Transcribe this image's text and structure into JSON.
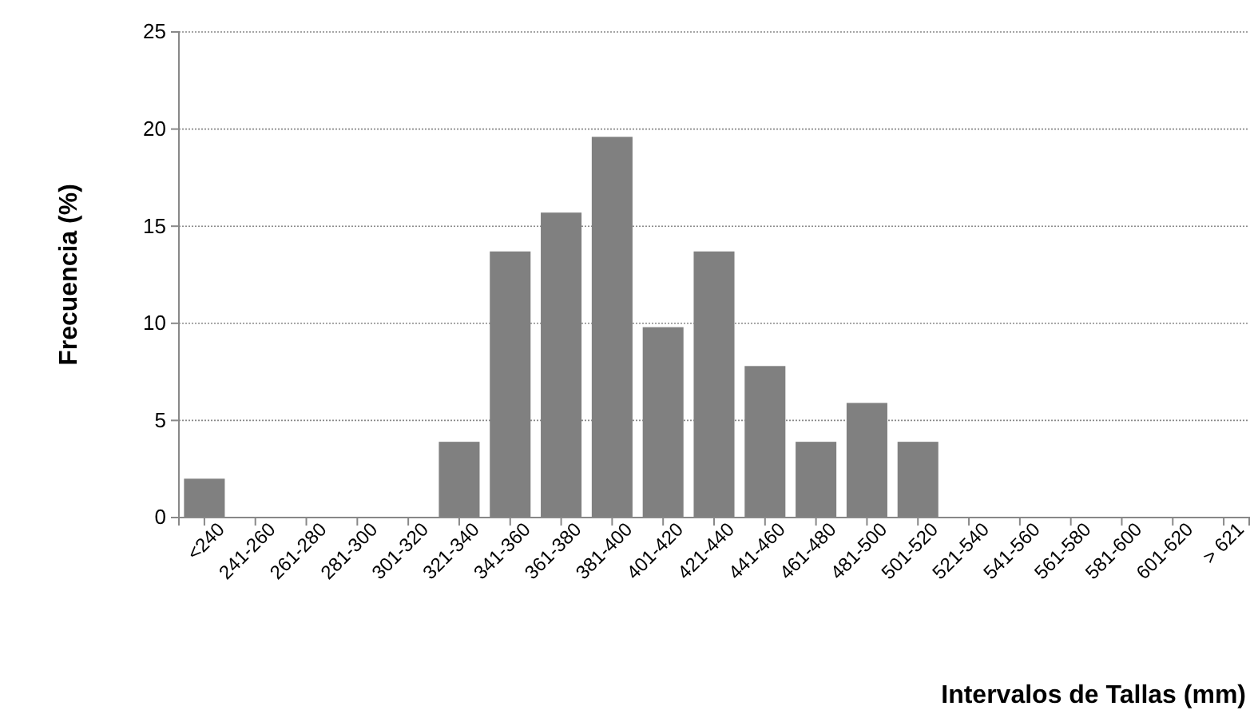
{
  "chart_data": {
    "type": "bar",
    "xlabel": "Intervalos de Tallas (mm)",
    "ylabel": "Frecuencia  (%)",
    "categories": [
      "<240",
      "241-260",
      "261-280",
      "281-300",
      "301-320",
      "321-340",
      "341-360",
      "361-380",
      "381-400",
      "401-420",
      "421-440",
      "441-460",
      "461-480",
      "481-500",
      "501-520",
      "521-540",
      "541-560",
      "561-580",
      "581-600",
      "601-620",
      "> 621"
    ],
    "values": [
      2.0,
      0,
      0,
      0,
      0,
      3.9,
      13.7,
      15.7,
      19.6,
      9.8,
      13.7,
      7.8,
      3.9,
      5.9,
      3.9,
      0,
      0,
      0,
      0,
      0,
      0
    ],
    "color": "#808080",
    "ylim": [
      0,
      25
    ],
    "yticks": [
      0,
      5,
      10,
      15,
      20,
      25
    ],
    "grid": "y"
  }
}
